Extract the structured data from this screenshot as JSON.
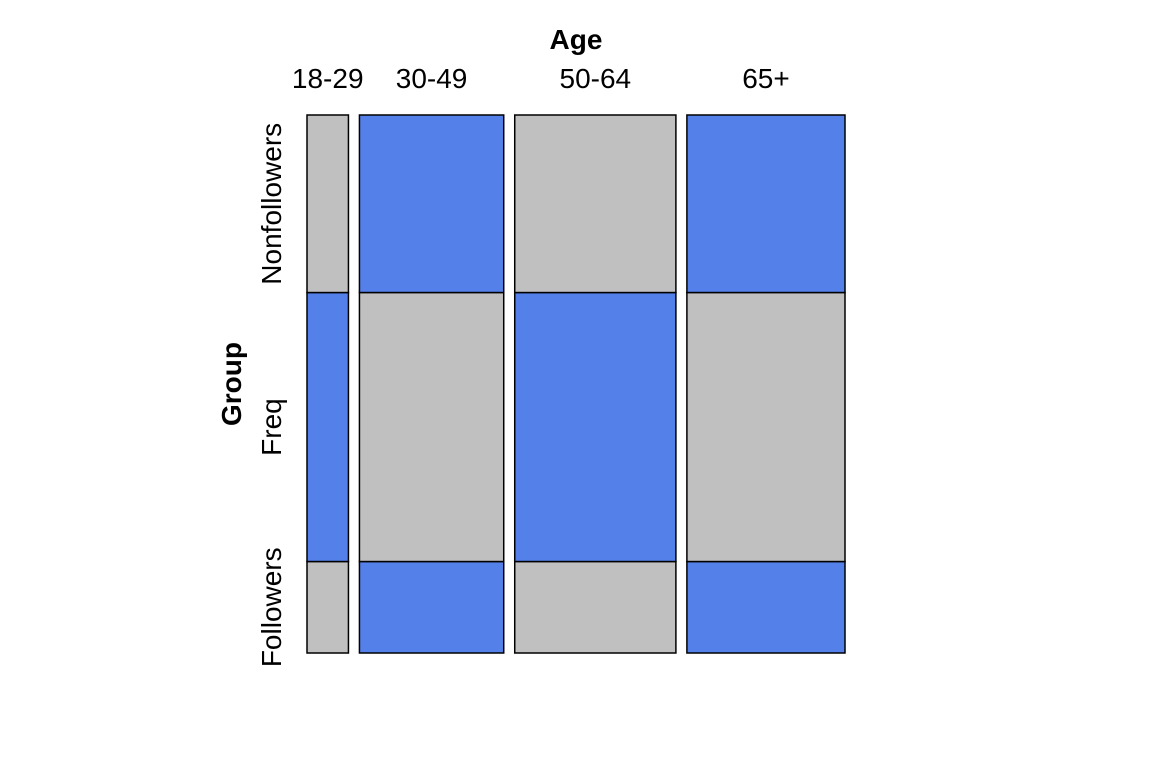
{
  "chart_data": {
    "type": "mosaic",
    "x_title": "Age",
    "y_title": "Group",
    "x_categories": [
      "18-29",
      "30-49",
      "50-64",
      "65+"
    ],
    "y_categories": [
      "Followers",
      "Freq",
      "Nonfollowers"
    ],
    "column_shares": [
      0.081,
      0.282,
      0.315,
      0.309
    ],
    "cells": [
      {
        "x": "18-29",
        "Followers": 0.17,
        "Freq": 0.5,
        "Nonfollowers": 0.33
      },
      {
        "x": "30-49",
        "Followers": 0.17,
        "Freq": 0.5,
        "Nonfollowers": 0.33
      },
      {
        "x": "50-64",
        "Followers": 0.17,
        "Freq": 0.5,
        "Nonfollowers": 0.33
      },
      {
        "x": "65+",
        "Followers": 0.17,
        "Freq": 0.5,
        "Nonfollowers": 0.33
      }
    ],
    "colors": {
      "gray": "#c0c0c0",
      "blue": "#5480e9"
    },
    "cell_colors": [
      [
        "gray",
        "blue",
        "gray"
      ],
      [
        "blue",
        "gray",
        "blue"
      ],
      [
        "gray",
        "blue",
        "gray"
      ],
      [
        "blue",
        "gray",
        "blue"
      ]
    ],
    "legend": "none",
    "grid": false
  }
}
